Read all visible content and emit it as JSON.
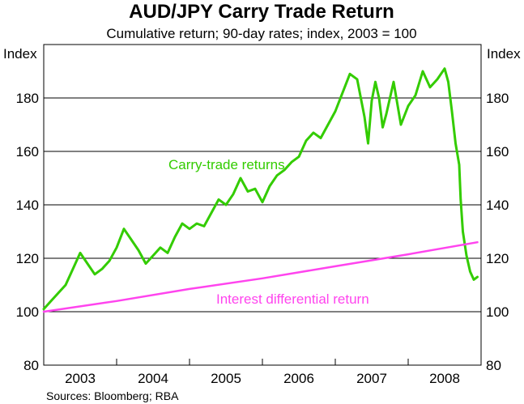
{
  "chart_data": {
    "type": "line",
    "title": "AUD/JPY Carry Trade Return",
    "subtitle": "Cumulative return; 90-day rates; index, 2003 = 100",
    "ylabel_left": "Index",
    "ylabel_right": "Index",
    "ylim": [
      80,
      200
    ],
    "yticks": [
      80,
      100,
      120,
      140,
      160,
      180
    ],
    "ytick_labels": [
      "80",
      "100",
      "120",
      "140",
      "160",
      "180"
    ],
    "xlim": [
      2003.0,
      2009.0
    ],
    "xtick_labels": [
      "2003",
      "2004",
      "2005",
      "2006",
      "2007",
      "2008"
    ],
    "xtick_positions": [
      2003.5,
      2004.5,
      2005.5,
      2006.5,
      2007.5,
      2008.5
    ],
    "grid": "horizontal",
    "source": "Sources: Bloomberg; RBA",
    "colors": {
      "carry": "#33cc00",
      "interest": "#ff44ee",
      "grid": "#000000"
    },
    "series": [
      {
        "name": "Carry-trade returns",
        "color": "#33cc00",
        "x": [
          2003.0,
          2003.1,
          2003.2,
          2003.3,
          2003.4,
          2003.5,
          2003.6,
          2003.7,
          2003.8,
          2003.9,
          2004.0,
          2004.1,
          2004.2,
          2004.3,
          2004.4,
          2004.5,
          2004.6,
          2004.7,
          2004.8,
          2004.9,
          2005.0,
          2005.1,
          2005.2,
          2005.3,
          2005.4,
          2005.5,
          2005.6,
          2005.7,
          2005.8,
          2005.9,
          2006.0,
          2006.1,
          2006.2,
          2006.3,
          2006.4,
          2006.5,
          2006.6,
          2006.7,
          2006.8,
          2006.9,
          2007.0,
          2007.1,
          2007.2,
          2007.3,
          2007.4,
          2007.45,
          2007.5,
          2007.55,
          2007.6,
          2007.65,
          2007.7,
          2007.8,
          2007.9,
          2008.0,
          2008.1,
          2008.2,
          2008.3,
          2008.4,
          2008.5,
          2008.55,
          2008.6,
          2008.65,
          2008.7,
          2008.72,
          2008.75,
          2008.8,
          2008.85,
          2008.9,
          2008.95
        ],
        "values": [
          101,
          104,
          107,
          110,
          116,
          122,
          118,
          114,
          116,
          119,
          124,
          131,
          127,
          123,
          118,
          121,
          124,
          122,
          128,
          133,
          131,
          133,
          132,
          137,
          142,
          140,
          144,
          150,
          145,
          146,
          141,
          147,
          151,
          153,
          156,
          158,
          164,
          167,
          165,
          170,
          175,
          182,
          189,
          187,
          173,
          163,
          179,
          186,
          180,
          169,
          174,
          186,
          170,
          177,
          181,
          190,
          184,
          187,
          191,
          186,
          175,
          163,
          155,
          142,
          130,
          121,
          115,
          112,
          113
        ]
      },
      {
        "name": "Interest differential return",
        "color": "#ff44ee",
        "x": [
          2003.0,
          2004.0,
          2005.0,
          2006.0,
          2007.0,
          2008.0,
          2008.95
        ],
        "values": [
          100,
          104,
          108.5,
          112.5,
          117,
          121.5,
          126
        ]
      }
    ]
  }
}
